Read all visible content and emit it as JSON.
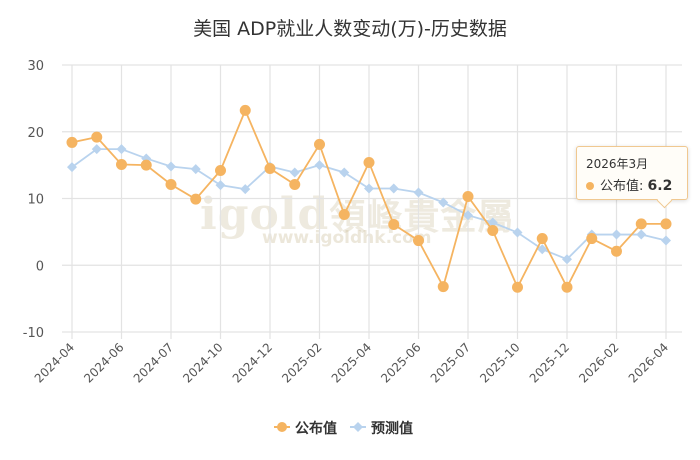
{
  "chart_data": {
    "type": "line",
    "title": "美国 ADP就业人数变动(万)-历史数据",
    "xlabel": "",
    "ylabel": "",
    "ylim": [
      -10,
      30
    ],
    "yticks": [
      -10,
      0,
      10,
      20,
      30
    ],
    "grid": true,
    "legend_placement": "bottom-center",
    "tick_labels": [
      "2024-04",
      "2024-06",
      "2024-07",
      "2024-10",
      "2024-12",
      "2025-02",
      "2025-04",
      "2025-06",
      "2025-07",
      "2025-10",
      "2025-12",
      "2026-02",
      "2026-04"
    ],
    "series": [
      {
        "name": "公布值",
        "color": "#f5b461",
        "values": [
          18.4,
          19.2,
          15.1,
          15.0,
          12.1,
          9.9,
          14.2,
          23.2,
          14.5,
          12.1,
          18.1,
          7.6,
          15.4,
          6.1,
          3.7,
          -3.2,
          10.3,
          5.2,
          -3.3,
          4.0,
          -3.3,
          4.0,
          2.1,
          6.2,
          6.2
        ]
      },
      {
        "name": "预测值",
        "color": "#b9d3ee",
        "values": [
          14.7,
          17.4,
          17.4,
          16.0,
          14.8,
          14.4,
          12.0,
          11.4,
          14.8,
          13.9,
          15.0,
          13.9,
          11.5,
          11.5,
          10.9,
          9.4,
          7.5,
          6.4,
          4.9,
          2.4,
          0.9,
          4.6,
          4.6,
          4.6,
          3.7
        ]
      }
    ],
    "tooltip": {
      "date": "2026年3月",
      "series": "公布值",
      "value": "6.2"
    }
  },
  "watermark": {
    "main": "igold 領峰貴金屬",
    "url": "www.igoldhk.com"
  }
}
